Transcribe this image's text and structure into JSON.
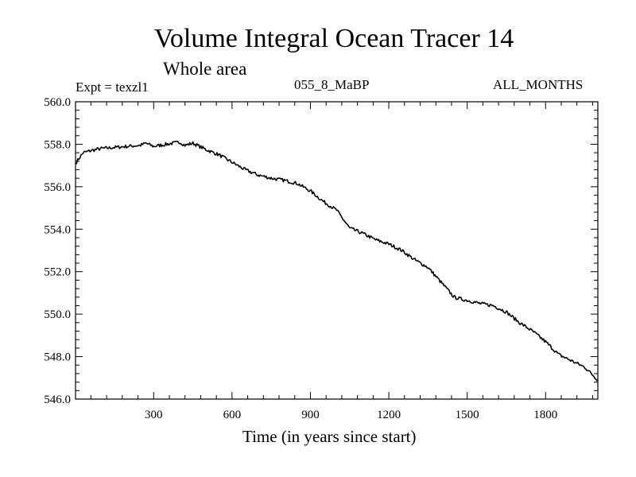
{
  "chart_data": {
    "type": "line",
    "title": "Volume Integral Ocean Tracer 14",
    "subtitle": "Whole area",
    "experiment_label": "Expt = texzl1",
    "period_label": "055_8_MaBP",
    "months_label": "ALL_MONTHS",
    "xlabel": "Time (in years since start)",
    "ylabel": "",
    "xlim": [
      1,
      2000
    ],
    "ylim": [
      546.0,
      560.0
    ],
    "x_ticks": [
      300,
      600,
      900,
      1200,
      1500,
      1800
    ],
    "x_tick_labels": [
      "300",
      "600",
      "900",
      "1200",
      "1500",
      "1800"
    ],
    "y_ticks": [
      546.0,
      548.0,
      550.0,
      552.0,
      554.0,
      556.0,
      558.0,
      560.0
    ],
    "y_tick_labels": [
      "546.0",
      "548.0",
      "550.0",
      "552.0",
      "554.0",
      "556.0",
      "558.0",
      "560.0"
    ],
    "series": [
      {
        "name": "Volume Integral Ocean Tracer 14",
        "x": [
          1,
          30,
          60,
          100,
          150,
          200,
          250,
          270,
          300,
          350,
          400,
          420,
          450,
          500,
          550,
          600,
          650,
          700,
          750,
          800,
          850,
          900,
          950,
          1000,
          1050,
          1100,
          1150,
          1200,
          1250,
          1300,
          1350,
          1400,
          1450,
          1480,
          1500,
          1550,
          1600,
          1650,
          1700,
          1750,
          1800,
          1850,
          1900,
          1950,
          2000
        ],
        "y": [
          557.1,
          557.6,
          557.7,
          557.8,
          557.85,
          557.9,
          557.95,
          558.05,
          557.9,
          558.0,
          558.1,
          557.95,
          558.05,
          557.75,
          557.5,
          557.15,
          556.8,
          556.55,
          556.4,
          556.3,
          556.15,
          555.8,
          555.3,
          554.9,
          554.05,
          553.8,
          553.5,
          553.3,
          553.0,
          552.55,
          552.2,
          551.5,
          550.8,
          550.7,
          550.65,
          550.5,
          550.4,
          550.1,
          549.6,
          549.2,
          548.7,
          548.1,
          547.8,
          547.5,
          546.9
        ]
      }
    ]
  }
}
